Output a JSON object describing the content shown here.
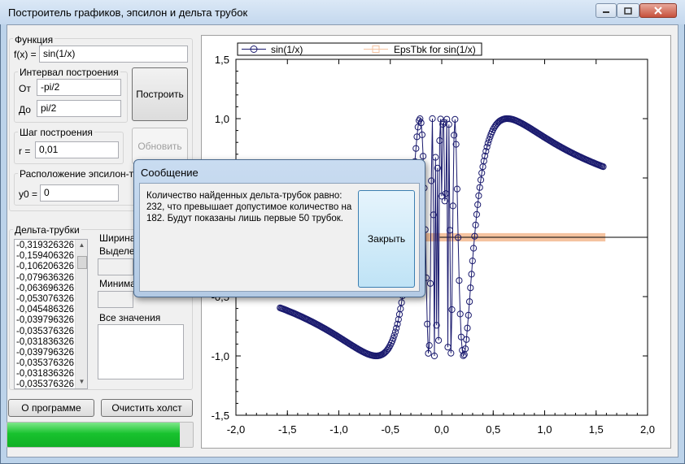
{
  "window": {
    "title": "Построитель графиков, эпсилон и дельта трубок"
  },
  "function_group": {
    "label": "Функция",
    "fx_label": "f(x) =",
    "fx_value": "sin(1/x)"
  },
  "interval_group": {
    "label": "Интервал построения",
    "from_label": "От",
    "from_value": "-pi/2",
    "to_label": "До",
    "to_value": "pi/2"
  },
  "step_group": {
    "label": "Шаг построения",
    "r_label": "r =",
    "r_value": "0,01"
  },
  "epsilon_group": {
    "label": "Расположение эпсилон-тру",
    "y0_label": "y0 =",
    "y0_value": "0"
  },
  "buttons": {
    "build": "Построить",
    "update": "Обновить",
    "about": "О программе",
    "clear": "Очистить холст"
  },
  "delta_group": {
    "label": "Дельта-трубки",
    "items": [
      "-0,319326326",
      "-0,159406326",
      "-0,106206326",
      "-0,079636326",
      "-0,063696326",
      "-0,053076326",
      "-0,045486326",
      "-0,039796326",
      "-0,035376326",
      "-0,031836326",
      "-0,039796326",
      "-0,035376326",
      "-0,031836326",
      "-0,035376326"
    ],
    "width_label": "Ширина",
    "selected_label": "Выделе",
    "min_label": "Минима",
    "all_values_label": "Все значения"
  },
  "progress": {
    "value_percent": 93,
    "fill_color": "#18c22e"
  },
  "dialog": {
    "title": "Сообщение",
    "message": "Количество найденных дельта-трубок равно: 232, что превышает допустимое количество на 182. Будут показаны лишь первые 50 трубок.",
    "close_button": "Закрыть"
  },
  "chart_data": {
    "type": "line",
    "series": [
      {
        "name": "sin(1/x)",
        "color": "#1a1a6e",
        "marker": "circle",
        "x_range": [
          -1.5708,
          1.5708
        ],
        "step": 0.01
      },
      {
        "name": "EpsTbk for sin(1/x)",
        "color": "#f5c3a0",
        "marker": "square",
        "y": 0,
        "band": [
          -0.035,
          0.035
        ],
        "x_range": [
          -0.5,
          1.59
        ]
      }
    ],
    "xlim": [
      -2.0,
      2.0
    ],
    "ylim": [
      -1.5,
      1.5
    ],
    "x_ticks": [
      "-2,0",
      "-1,5",
      "-1,0",
      "-0,5",
      "0,0",
      "0,5",
      "1,0",
      "1,5",
      "2,0"
    ],
    "y_ticks": [
      "1,5",
      "1,0",
      "0,5",
      "0,0",
      "-0,5",
      "-1,0",
      "-1,5"
    ],
    "legend_position": "top"
  }
}
